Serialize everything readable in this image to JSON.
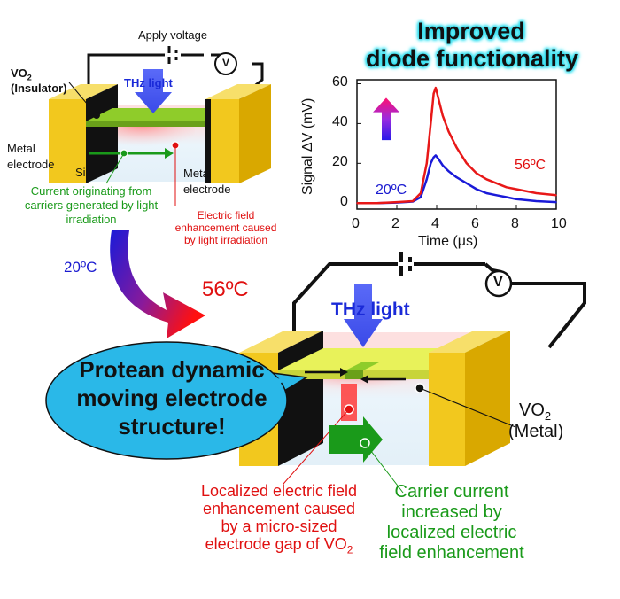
{
  "title": {
    "line1": "Improved",
    "line2": "diode functionality"
  },
  "top_device": {
    "apply_voltage": "Apply voltage",
    "meter_symbol": "V",
    "thz_label": "THz light",
    "vo2_label": "VO",
    "vo2_sub": "2",
    "vo2_state": "(Insulator)",
    "metal_left_1": "Metal",
    "metal_left_2": "electrode",
    "si_label": "Si",
    "metal_right_1": "Metal",
    "metal_right_2": "electrode",
    "current_lines": [
      "Current originating from",
      "carriers generated by light",
      "irradiation"
    ],
    "field_lines": [
      "Electric field",
      "enhancement caused",
      "by light irradiation"
    ],
    "temp": "20ºC"
  },
  "transition": {
    "temp_hot": "56ºC"
  },
  "bottom_device": {
    "meter_symbol": "V",
    "thz_label": "THz light",
    "vo2_label": "VO",
    "vo2_sub": "2",
    "vo2_state": "(Metal)",
    "bubble_lines": [
      "Protean dynamic",
      "moving electrode",
      "structure!"
    ],
    "field_lines": [
      "Localized electric field",
      "enhancement caused",
      "by a micro-sized",
      "electrode gap of VO"
    ],
    "field_sub": "2",
    "carrier_lines": [
      "Carrier current",
      "increased by",
      "localized electric",
      "field enhancement"
    ]
  },
  "colors": {
    "electrode": "#f2c81e",
    "vo2_insulator": "#8fcc2a",
    "vo2_metal": "#e8f25a",
    "cyan_glow": "#33e0f0",
    "hot": "#e01010",
    "cold": "#1a1ad0",
    "carrier": "#1a9a1a"
  },
  "chart_data": {
    "type": "line",
    "xlabel": "Time (μs)",
    "ylabel": "Signal ΔV (mV)",
    "xlim": [
      0,
      10
    ],
    "ylim": [
      -3,
      62
    ],
    "xticks": [
      0,
      2,
      4,
      6,
      8,
      10
    ],
    "yticks": [
      0,
      20,
      40,
      60
    ],
    "series": [
      {
        "name": "56ºC",
        "color": "#e81818",
        "x": [
          0,
          1,
          2,
          2.8,
          3.2,
          3.5,
          3.7,
          3.85,
          3.95,
          4.1,
          4.3,
          4.6,
          5,
          5.5,
          6,
          6.5,
          7,
          7.5,
          8,
          9,
          10
        ],
        "y": [
          0,
          0,
          0.5,
          1,
          5,
          20,
          40,
          55,
          58,
          52,
          44,
          36,
          28,
          20,
          15,
          12,
          10,
          8,
          7,
          5,
          4
        ]
      },
      {
        "name": "20ºC",
        "color": "#1a1ad8",
        "x": [
          0,
          1,
          2,
          2.8,
          3.2,
          3.5,
          3.7,
          3.85,
          3.95,
          4.1,
          4.3,
          4.6,
          5,
          5.5,
          6,
          6.5,
          7,
          7.5,
          8,
          9,
          10
        ],
        "y": [
          0,
          0,
          0.3,
          0.8,
          3,
          12,
          20,
          23,
          24,
          22,
          19,
          16,
          13,
          10,
          7,
          5,
          4,
          3,
          2,
          1,
          0.5
        ]
      }
    ]
  }
}
